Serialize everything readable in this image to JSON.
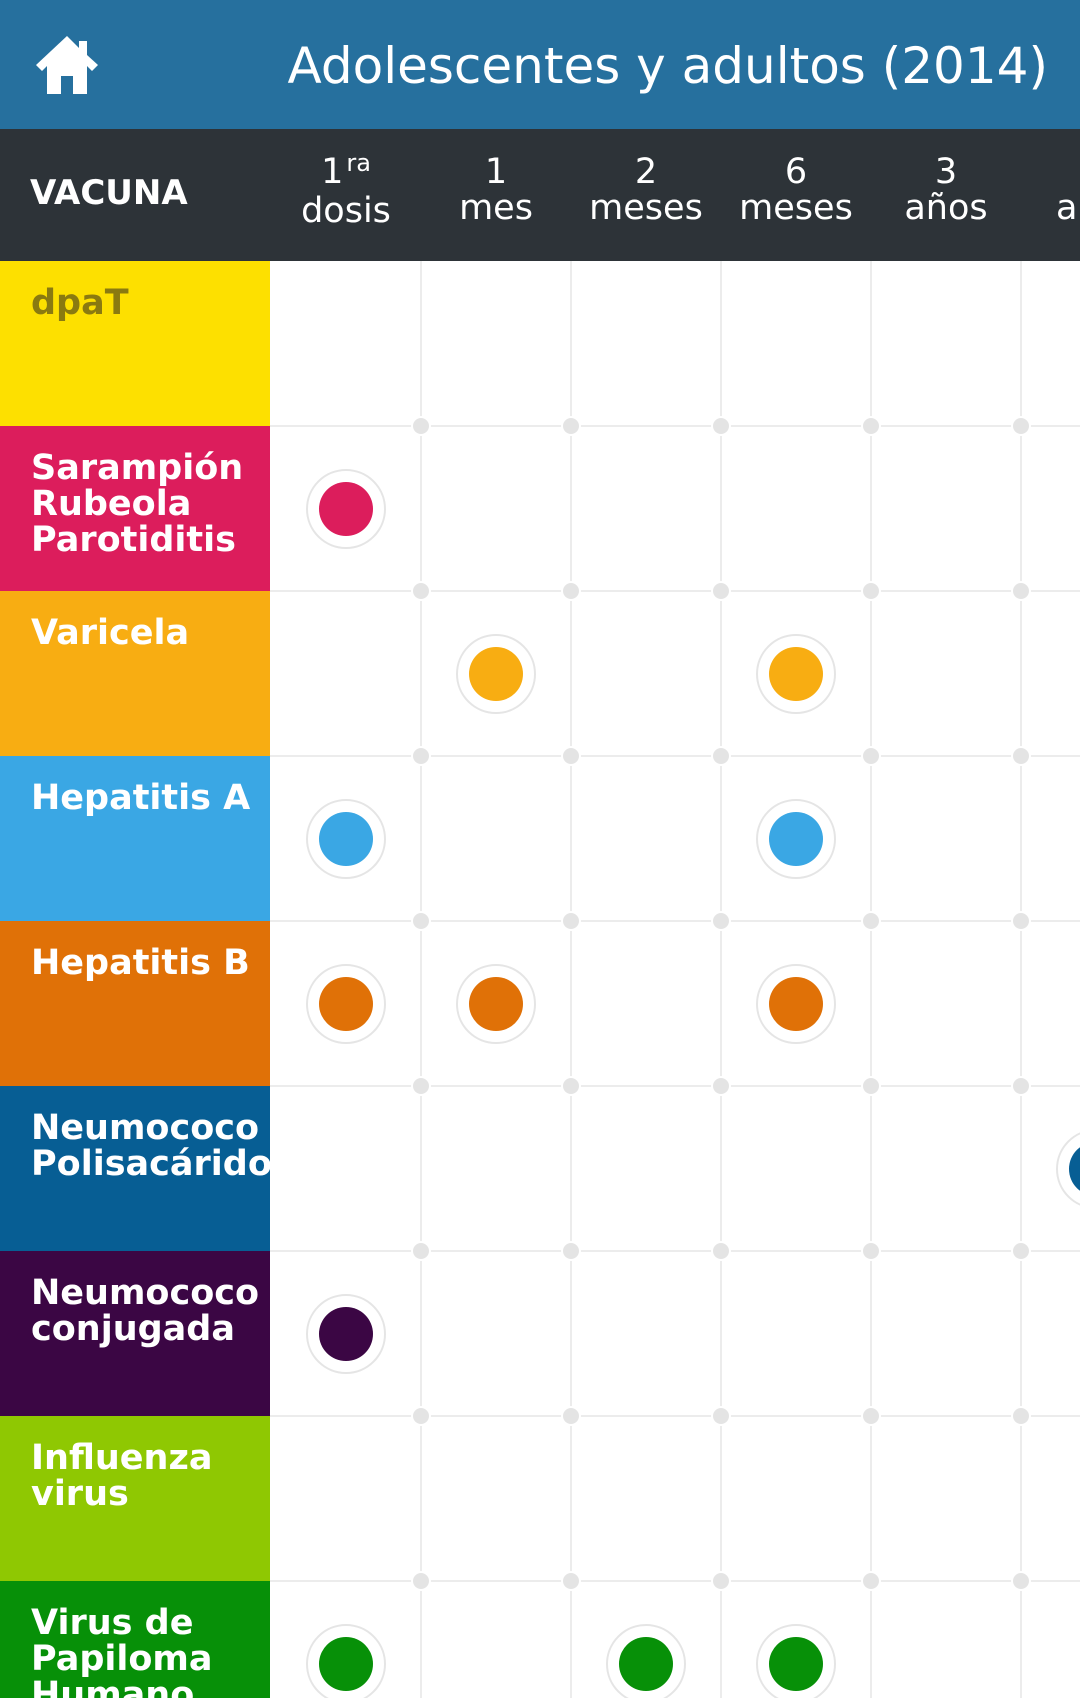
{
  "app_bar": {
    "title": "Adolescentes y adultos (2014)",
    "home_icon": "home-icon"
  },
  "header": {
    "vacuna_label": "VACUNA",
    "columns": [
      {
        "num": "1",
        "sup": "ra",
        "unit": "dosis"
      },
      {
        "num": "1",
        "sup": "",
        "unit": "mes"
      },
      {
        "num": "2",
        "sup": "",
        "unit": "meses"
      },
      {
        "num": "6",
        "sup": "",
        "unit": "meses"
      },
      {
        "num": "3",
        "sup": "",
        "unit": "años"
      },
      {
        "num": "",
        "sup": "",
        "unit": "ar"
      }
    ]
  },
  "vaccines": [
    {
      "lines": [
        "dpaT"
      ],
      "color": "#fde000",
      "text_color": "#8a7a10",
      "doses": []
    },
    {
      "lines": [
        "Sarampión",
        "Rubeola",
        "Parotiditis"
      ],
      "color": "#dc1d5c",
      "text_color": "#ffffff",
      "doses": [
        0
      ]
    },
    {
      "lines": [
        "Varicela"
      ],
      "color": "#f8ad12",
      "text_color": "#ffffff",
      "doses": [
        1,
        3
      ]
    },
    {
      "lines": [
        "Hepatitis A"
      ],
      "color": "#3aa7e4",
      "text_color": "#ffffff",
      "doses": [
        0,
        3
      ]
    },
    {
      "lines": [
        "Hepatitis B"
      ],
      "color": "#e07107",
      "text_color": "#ffffff",
      "doses": [
        0,
        1,
        3
      ]
    },
    {
      "lines": [
        "Neumococo",
        "Polisacárido"
      ],
      "color": "#075e94",
      "text_color": "#ffffff",
      "doses": [
        5
      ]
    },
    {
      "lines": [
        "Neumococo",
        "conjugada"
      ],
      "color": "#3b0644",
      "text_color": "#ffffff",
      "doses": [
        0
      ]
    },
    {
      "lines": [
        "Influenza",
        "virus"
      ],
      "color": "#8fc802",
      "text_color": "#ffffff",
      "doses": []
    },
    {
      "lines": [
        "Virus de",
        "Papiloma",
        "Humano"
      ],
      "color": "#079008",
      "text_color": "#ffffff",
      "doses": [
        0,
        2,
        3
      ]
    }
  ]
}
